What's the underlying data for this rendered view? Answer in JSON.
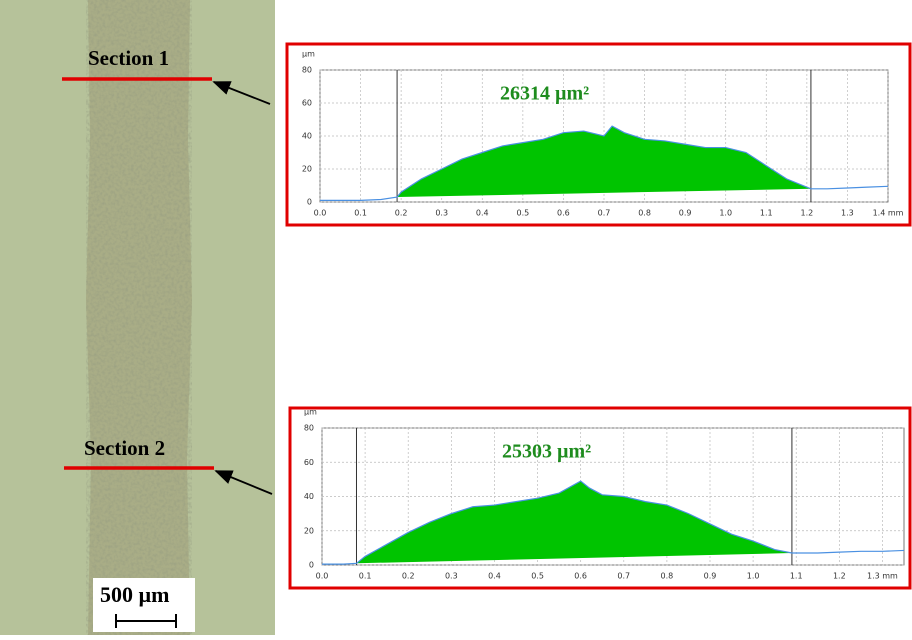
{
  "image": {
    "sections": [
      "Section 1",
      "Section 2"
    ],
    "scale_bar": "500 µm"
  },
  "chart_data": [
    {
      "type": "area",
      "y_label": "µm",
      "annotation": "26314 µm²",
      "x": [
        0,
        0.05,
        0.1,
        0.15,
        0.19,
        0.2,
        0.25,
        0.3,
        0.35,
        0.4,
        0.45,
        0.5,
        0.55,
        0.6,
        0.65,
        0.7,
        0.72,
        0.75,
        0.8,
        0.85,
        0.9,
        0.95,
        1.0,
        1.05,
        1.1,
        1.15,
        1.2,
        1.21,
        1.25,
        1.3,
        1.35,
        1.4
      ],
      "values": [
        1,
        1,
        1,
        1.5,
        3,
        6,
        14,
        20,
        26,
        30,
        34,
        36,
        38,
        42,
        43,
        40,
        46,
        42,
        38,
        37,
        35,
        33,
        33,
        30,
        22,
        14,
        9,
        8,
        8,
        8.5,
        9,
        9.5
      ],
      "markers": [
        0.19,
        1.21
      ],
      "line_color": "#4a90e2",
      "fill_color": "#00c400",
      "annotation_color": "#1e8c1e",
      "xlim": [
        0,
        1.4
      ],
      "ylim": [
        0,
        80
      ],
      "xticks": [
        {
          "value": 0,
          "label": "0.0"
        },
        0.1,
        0.2,
        0.3,
        0.4,
        0.5,
        0.6,
        0.7,
        0.8,
        0.9,
        {
          "value": 1,
          "label": "1.0"
        },
        1.1,
        1.2,
        1.3,
        {
          "value": 1.4,
          "label": "1.4 mm"
        }
      ],
      "yticks": [
        0,
        20,
        40,
        60,
        80
      ],
      "grid": true
    },
    {
      "type": "area",
      "y_label": "µm",
      "annotation": "25303 µm²",
      "x": [
        0,
        0.05,
        0.08,
        0.1,
        0.15,
        0.2,
        0.25,
        0.3,
        0.35,
        0.4,
        0.45,
        0.5,
        0.55,
        0.6,
        0.62,
        0.65,
        0.7,
        0.75,
        0.8,
        0.85,
        0.9,
        0.95,
        1.0,
        1.05,
        1.09,
        1.15,
        1.2,
        1.25,
        1.3,
        1.35
      ],
      "values": [
        0.5,
        0.5,
        1,
        5,
        12,
        19,
        25,
        30,
        34,
        35,
        37,
        39,
        42,
        49,
        45,
        41,
        40,
        37,
        35,
        30,
        24,
        18,
        14,
        9,
        7,
        7,
        7.5,
        8,
        8,
        8.5
      ],
      "markers": [
        0.08,
        1.09
      ],
      "line_color": "#4a90e2",
      "fill_color": "#00c400",
      "annotation_color": "#1e8c1e",
      "xlim": [
        0,
        1.35
      ],
      "ylim": [
        0,
        80
      ],
      "xticks": [
        {
          "value": 0,
          "label": "0.0"
        },
        0.1,
        0.2,
        0.3,
        0.4,
        0.5,
        0.6,
        0.7,
        0.8,
        0.9,
        {
          "value": 1,
          "label": "1.0"
        },
        1.1,
        1.2,
        {
          "value": 1.3,
          "label": "1.3 mm"
        }
      ],
      "yticks": [
        0,
        20,
        40,
        60,
        80
      ],
      "grid": true
    }
  ]
}
